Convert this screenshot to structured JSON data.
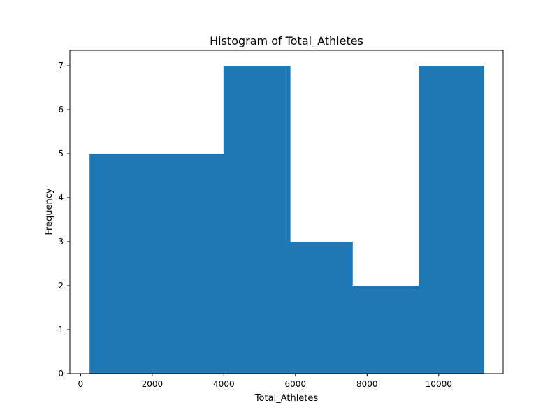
{
  "chart_data": {
    "type": "bar",
    "title": "Histogram of Total_Athletes",
    "xlabel": "Total_Athletes",
    "ylabel": "Frequency",
    "bins": [
      {
        "x0": 250,
        "x1": 2125,
        "count": 5
      },
      {
        "x0": 2125,
        "x1": 3990,
        "count": 5
      },
      {
        "x0": 3990,
        "x1": 5850,
        "count": 7
      },
      {
        "x0": 5850,
        "x1": 7590,
        "count": 3
      },
      {
        "x0": 7590,
        "x1": 9440,
        "count": 2
      },
      {
        "x0": 9440,
        "x1": 11260,
        "count": 7
      }
    ],
    "xlim": [
      -300,
      11800
    ],
    "ylim": [
      0,
      7.35
    ],
    "xticks": [
      0,
      2000,
      4000,
      6000,
      8000,
      10000
    ],
    "yticks": [
      0,
      1,
      2,
      3,
      4,
      5,
      6,
      7
    ],
    "bar_color": "#1f77b4",
    "grid": false
  }
}
